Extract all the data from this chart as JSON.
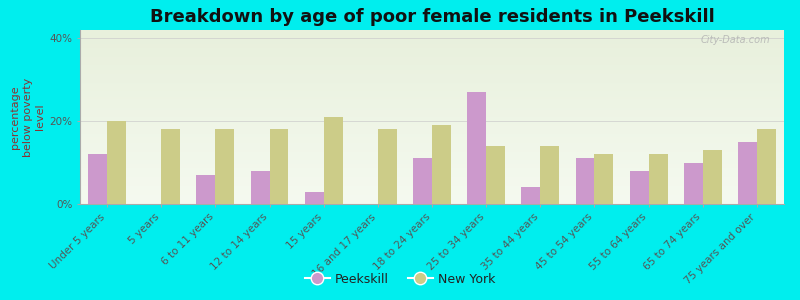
{
  "title": "Breakdown by age of poor female residents in Peekskill",
  "ylabel": "percentage\nbelow poverty\nlevel",
  "categories": [
    "Under 5 years",
    "5 years",
    "6 to 11 years",
    "12 to 14 years",
    "15 years",
    "16 and 17 years",
    "18 to 24 years",
    "25 to 34 years",
    "35 to 44 years",
    "45 to 54 years",
    "55 to 64 years",
    "65 to 74 years",
    "75 years and over"
  ],
  "peekskill": [
    12,
    0,
    7,
    8,
    3,
    0,
    11,
    27,
    4,
    11,
    8,
    10,
    15
  ],
  "new_york": [
    20,
    18,
    18,
    18,
    21,
    18,
    19,
    14,
    14,
    12,
    12,
    13,
    18
  ],
  "peekskill_color": "#cc99cc",
  "new_york_color": "#cccc88",
  "background_color": "#00eeee",
  "ylim": [
    0,
    42
  ],
  "yticks": [
    0,
    20,
    40
  ],
  "ytick_labels": [
    "0%",
    "20%",
    "40%"
  ],
  "title_fontsize": 13,
  "axis_label_fontsize": 8,
  "tick_fontsize": 7.5,
  "legend_fontsize": 9,
  "watermark": "City-Data.com"
}
